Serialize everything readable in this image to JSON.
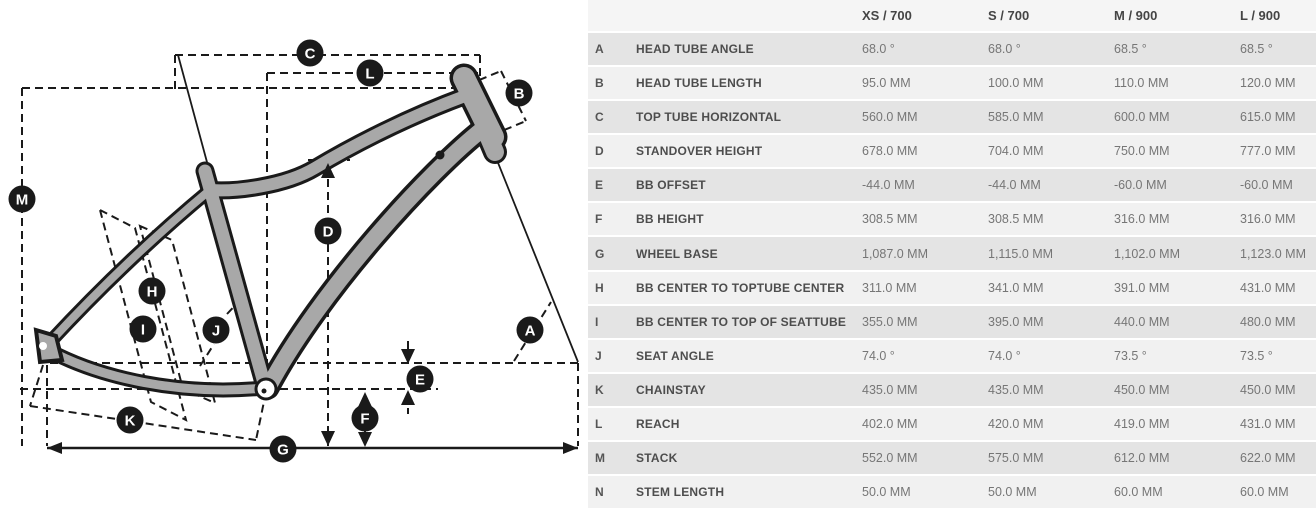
{
  "diagram": {
    "markers": [
      "A",
      "B",
      "C",
      "D",
      "E",
      "F",
      "G",
      "H",
      "I",
      "J",
      "K",
      "L",
      "M"
    ],
    "frame_color": "#a8a8a8",
    "line_color": "#1a1a1a",
    "marker_bg": "#1a1a1a",
    "marker_text_color": "#ffffff"
  },
  "table": {
    "size_headers": [
      "XS / 700",
      "S / 700",
      "M / 900",
      "L / 900"
    ],
    "rows": [
      {
        "key": "A",
        "label": "HEAD TUBE ANGLE",
        "values": [
          "68.0 °",
          "68.0 °",
          "68.5 °",
          "68.5 °"
        ]
      },
      {
        "key": "B",
        "label": "HEAD TUBE LENGTH",
        "values": [
          "95.0 MM",
          "100.0 MM",
          "110.0 MM",
          "120.0 MM"
        ]
      },
      {
        "key": "C",
        "label": "TOP TUBE HORIZONTAL",
        "values": [
          "560.0 MM",
          "585.0 MM",
          "600.0 MM",
          "615.0 MM"
        ]
      },
      {
        "key": "D",
        "label": "STANDOVER HEIGHT",
        "values": [
          "678.0 MM",
          "704.0 MM",
          "750.0 MM",
          "777.0 MM"
        ]
      },
      {
        "key": "E",
        "label": "BB OFFSET",
        "values": [
          "-44.0 MM",
          "-44.0 MM",
          "-60.0 MM",
          "-60.0 MM"
        ]
      },
      {
        "key": "F",
        "label": "BB HEIGHT",
        "values": [
          "308.5 MM",
          "308.5 MM",
          "316.0 MM",
          "316.0 MM"
        ]
      },
      {
        "key": "G",
        "label": "WHEEL BASE",
        "values": [
          "1,087.0 MM",
          "1,115.0 MM",
          "1,102.0 MM",
          "1,123.0 MM"
        ]
      },
      {
        "key": "H",
        "label": "BB CENTER TO TOPTUBE CENTER",
        "values": [
          "311.0 MM",
          "341.0 MM",
          "391.0 MM",
          "431.0 MM"
        ]
      },
      {
        "key": "I",
        "label": "BB CENTER TO TOP OF SEATTUBE",
        "values": [
          "355.0 MM",
          "395.0 MM",
          "440.0 MM",
          "480.0 MM"
        ]
      },
      {
        "key": "J",
        "label": "SEAT ANGLE",
        "values": [
          "74.0 °",
          "74.0 °",
          "73.5 °",
          "73.5 °"
        ]
      },
      {
        "key": "K",
        "label": "CHAINSTAY",
        "values": [
          "435.0 MM",
          "435.0 MM",
          "450.0 MM",
          "450.0 MM"
        ]
      },
      {
        "key": "L",
        "label": "REACH",
        "values": [
          "402.0 MM",
          "420.0 MM",
          "419.0 MM",
          "431.0 MM"
        ]
      },
      {
        "key": "M",
        "label": "STACK",
        "values": [
          "552.0 MM",
          "575.0 MM",
          "612.0 MM",
          "622.0 MM"
        ]
      },
      {
        "key": "N",
        "label": "STEM LENGTH",
        "values": [
          "50.0 MM",
          "50.0 MM",
          "60.0 MM",
          "60.0 MM"
        ]
      }
    ]
  }
}
